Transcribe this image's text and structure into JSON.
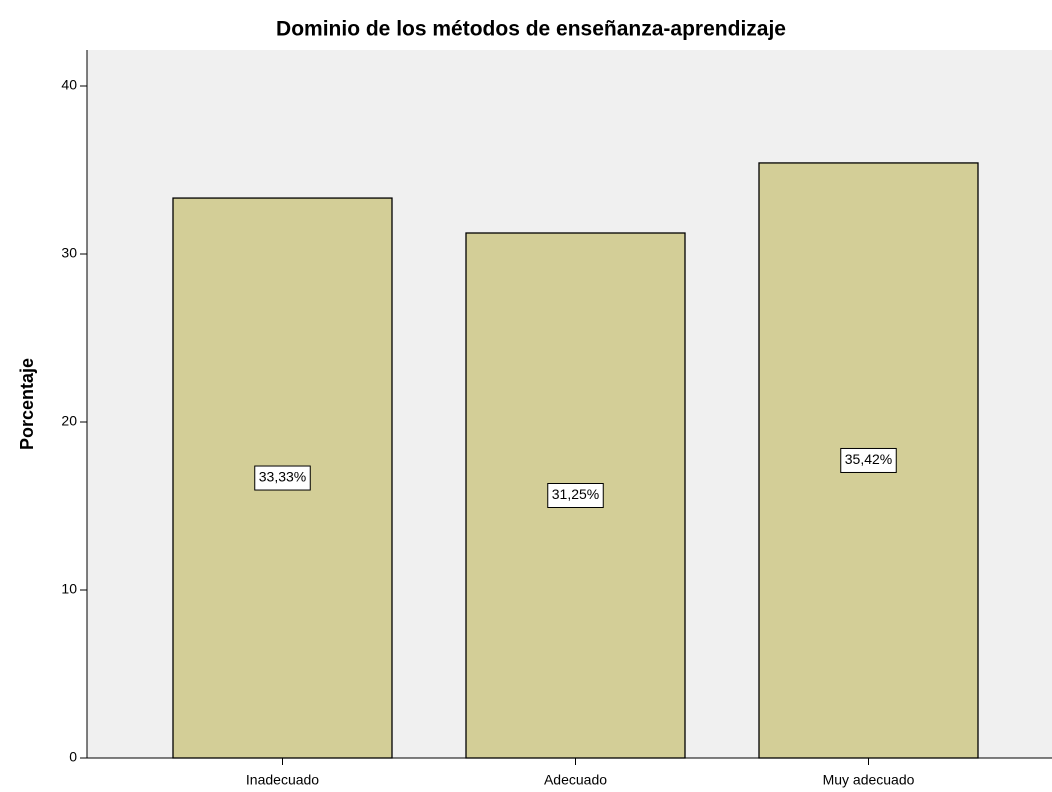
{
  "chart_data": {
    "type": "bar",
    "title": "Dominio de los métodos de enseñanza-aprendizaje",
    "y_label": "Porcentaje",
    "categories": [
      "Inadecuado",
      "Adecuado",
      "Muy adecuado"
    ],
    "values": [
      33.33,
      31.25,
      35.42
    ],
    "value_labels": [
      "33,33%",
      "31,25%",
      "35,42%"
    ],
    "color": "#d3ce97",
    "ylim": [
      0,
      42
    ],
    "yticks": [
      0,
      10,
      20,
      30,
      40
    ],
    "grid": false
  }
}
